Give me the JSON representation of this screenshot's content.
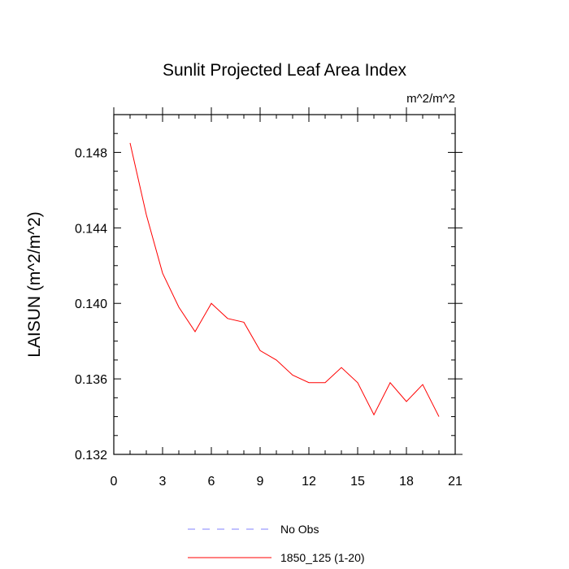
{
  "chart_data": {
    "type": "line",
    "title": "Sunlit Projected Leaf Area Index",
    "units": "m^2/m^2",
    "xlabel": "",
    "ylabel": "LAISUN  (m^2/m^2)",
    "xlim": [
      0,
      21
    ],
    "ylim": [
      0.132,
      0.15
    ],
    "xticks": [
      0,
      3,
      6,
      9,
      12,
      15,
      18,
      21
    ],
    "xtick_labels": [
      "0",
      "3",
      "6",
      "9",
      "12",
      "15",
      "18",
      "21"
    ],
    "yticks": [
      0.132,
      0.136,
      0.14,
      0.144,
      0.148
    ],
    "ytick_labels": [
      "0.132",
      "0.136",
      "0.140",
      "0.144",
      "0.148"
    ],
    "grid": false,
    "legend_position": "bottom",
    "series": [
      {
        "name": "1850_125 (1-20)",
        "color": "#ff0000",
        "style": "solid",
        "x": [
          1,
          2,
          3,
          4,
          5,
          6,
          7,
          8,
          9,
          10,
          11,
          12,
          13,
          14,
          15,
          16,
          17,
          18,
          19,
          20
        ],
        "y": [
          0.1485,
          0.1447,
          0.1416,
          0.1398,
          0.1385,
          0.14,
          0.1392,
          0.139,
          0.1375,
          0.137,
          0.1362,
          0.1358,
          0.1358,
          0.1366,
          0.1358,
          0.1341,
          0.1358,
          0.1348,
          0.1357,
          0.134
        ]
      }
    ],
    "legend": [
      {
        "name": "No Obs",
        "color": "#8080ff",
        "style": "dashed"
      },
      {
        "name": "1850_125 (1-20)",
        "color": "#ff0000",
        "style": "solid"
      }
    ]
  }
}
